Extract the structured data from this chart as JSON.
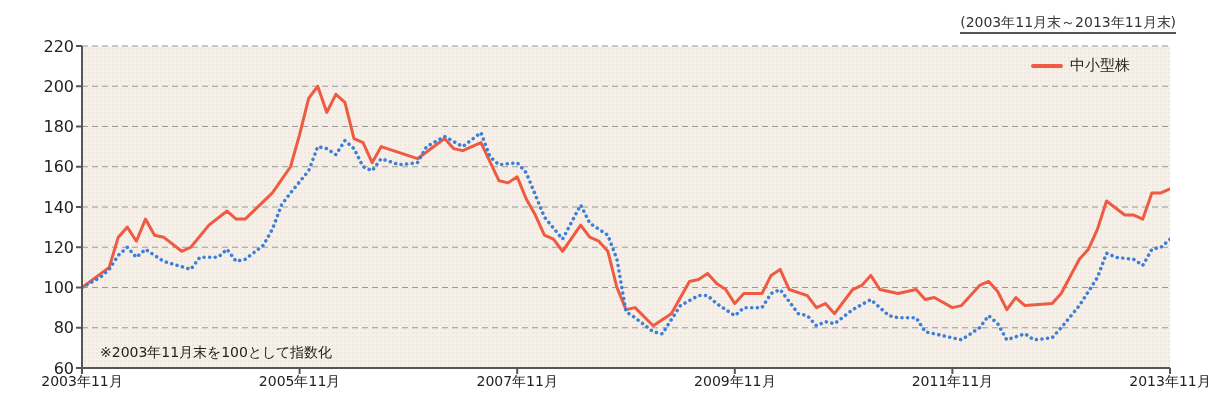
{
  "chart_data": {
    "type": "line",
    "subtitle": "(2003年11月末～2013年11月末)",
    "annotations": [
      "※2003年11月末を100として指数化"
    ],
    "xlim": [
      "2003-11",
      "2013-11"
    ],
    "xticks": [
      {
        "value": "2003-11",
        "label": "2003年11月"
      },
      {
        "value": "2005-11",
        "label": "2005年11月"
      },
      {
        "value": "2007-11",
        "label": "2007年11月"
      },
      {
        "value": "2009-11",
        "label": "2009年11月"
      },
      {
        "value": "2011-11",
        "label": "2011年11月"
      },
      {
        "value": "2013-11",
        "label": "2013年11月"
      }
    ],
    "ylim": [
      60,
      220
    ],
    "yticks": [
      60,
      80,
      100,
      120,
      140,
      160,
      180,
      200,
      220
    ],
    "grid": "y",
    "legend": "top right",
    "marker": "none",
    "series": [
      {
        "name": "中小型株",
        "color": "#ee5a42",
        "line_style": "solid",
        "x": [
          "2003-11",
          "2004-02",
          "2004-03",
          "2004-04",
          "2004-05",
          "2004-06",
          "2004-07",
          "2004-08",
          "2004-10",
          "2004-11",
          "2005-01",
          "2005-03",
          "2005-04",
          "2005-05",
          "2005-08",
          "2005-10",
          "2005-11",
          "2005-12",
          "2006-01",
          "2006-02",
          "2006-03",
          "2006-04",
          "2006-05",
          "2006-06",
          "2006-07",
          "2006-08",
          "2006-12",
          "2007-03",
          "2007-04",
          "2007-05",
          "2007-07",
          "2007-09",
          "2007-10",
          "2007-11",
          "2007-12",
          "2008-01",
          "2008-02",
          "2008-03",
          "2008-04",
          "2008-06",
          "2008-07",
          "2008-08",
          "2008-09",
          "2008-10",
          "2008-11",
          "2008-12",
          "2009-02",
          "2009-04",
          "2009-06",
          "2009-07",
          "2009-08",
          "2009-09",
          "2009-10",
          "2009-11",
          "2009-12",
          "2010-02",
          "2010-03",
          "2010-04",
          "2010-05",
          "2010-07",
          "2010-08",
          "2010-09",
          "2010-10",
          "2010-12",
          "2011-01",
          "2011-02",
          "2011-03",
          "2011-05",
          "2011-07",
          "2011-08",
          "2011-09",
          "2011-11",
          "2011-12",
          "2012-02",
          "2012-03",
          "2012-04",
          "2012-05",
          "2012-06",
          "2012-07",
          "2012-10",
          "2012-11",
          "2013-01",
          "2013-02",
          "2013-03",
          "2013-04",
          "2013-06",
          "2013-07",
          "2013-08",
          "2013-09",
          "2013-10",
          "2013-11"
        ],
        "values": [
          100,
          110,
          125,
          130,
          123,
          134,
          126,
          125,
          118,
          120,
          131,
          138,
          134,
          134,
          147,
          160,
          176,
          194,
          200,
          187,
          196,
          192,
          174,
          172,
          162,
          170,
          164,
          174,
          169,
          168,
          172,
          153,
          152,
          155,
          144,
          136,
          126,
          124,
          118,
          131,
          125,
          123,
          118,
          100,
          89,
          90,
          81,
          87,
          103,
          104,
          107,
          102,
          99,
          92,
          97,
          97,
          106,
          109,
          99,
          96,
          90,
          92,
          87,
          99,
          101,
          106,
          99,
          97,
          99,
          94,
          95,
          90,
          91,
          101,
          103,
          98,
          89,
          95,
          91,
          92,
          97,
          114,
          119,
          129,
          143,
          136,
          136,
          134,
          147,
          147,
          149
        ]
      },
      {
        "color": "#3d7fd6",
        "line_style": "dotted",
        "x": [
          "2003-11",
          "2004-01",
          "2004-02",
          "2004-03",
          "2004-04",
          "2004-05",
          "2004-06",
          "2004-08",
          "2004-11",
          "2004-12",
          "2005-02",
          "2005-03",
          "2005-04",
          "2005-05",
          "2005-07",
          "2005-08",
          "2005-09",
          "2005-10",
          "2005-12",
          "2006-01",
          "2006-02",
          "2006-03",
          "2006-04",
          "2006-05",
          "2006-06",
          "2006-07",
          "2006-08",
          "2006-10",
          "2006-12",
          "2007-01",
          "2007-03",
          "2007-05",
          "2007-07",
          "2007-08",
          "2007-09",
          "2007-11",
          "2007-12",
          "2008-02",
          "2008-04",
          "2008-06",
          "2008-07",
          "2008-09",
          "2008-10",
          "2008-11",
          "2008-12",
          "2009-02",
          "2009-03",
          "2009-05",
          "2009-07",
          "2009-08",
          "2009-09",
          "2009-11",
          "2009-12",
          "2010-02",
          "2010-03",
          "2010-04",
          "2010-06",
          "2010-07",
          "2010-08",
          "2010-09",
          "2010-10",
          "2010-12",
          "2011-02",
          "2011-04",
          "2011-05",
          "2011-07",
          "2011-08",
          "2011-10",
          "2011-12",
          "2012-02",
          "2012-03",
          "2012-04",
          "2012-05",
          "2012-07",
          "2012-08",
          "2012-10",
          "2012-11",
          "2013-01",
          "2013-02",
          "2013-03",
          "2013-04",
          "2013-05",
          "2013-07",
          "2013-08",
          "2013-09",
          "2013-10",
          "2013-11"
        ],
        "values": [
          100,
          105,
          109,
          116,
          120,
          115,
          119,
          113,
          109,
          115,
          115,
          119,
          113,
          114,
          121,
          129,
          141,
          147,
          158,
          170,
          169,
          166,
          173,
          169,
          160,
          158,
          164,
          161,
          162,
          170,
          175,
          170,
          177,
          165,
          161,
          162,
          157,
          135,
          124,
          141,
          132,
          126,
          114,
          88,
          85,
          78,
          77,
          91,
          96,
          96,
          92,
          86,
          90,
          90,
          97,
          99,
          87,
          86,
          81,
          83,
          82,
          89,
          94,
          86,
          85,
          85,
          78,
          76,
          74,
          80,
          86,
          82,
          74,
          77,
          74,
          75,
          80,
          91,
          98,
          105,
          117,
          115,
          114,
          111,
          119,
          120,
          124
        ]
      }
    ]
  }
}
